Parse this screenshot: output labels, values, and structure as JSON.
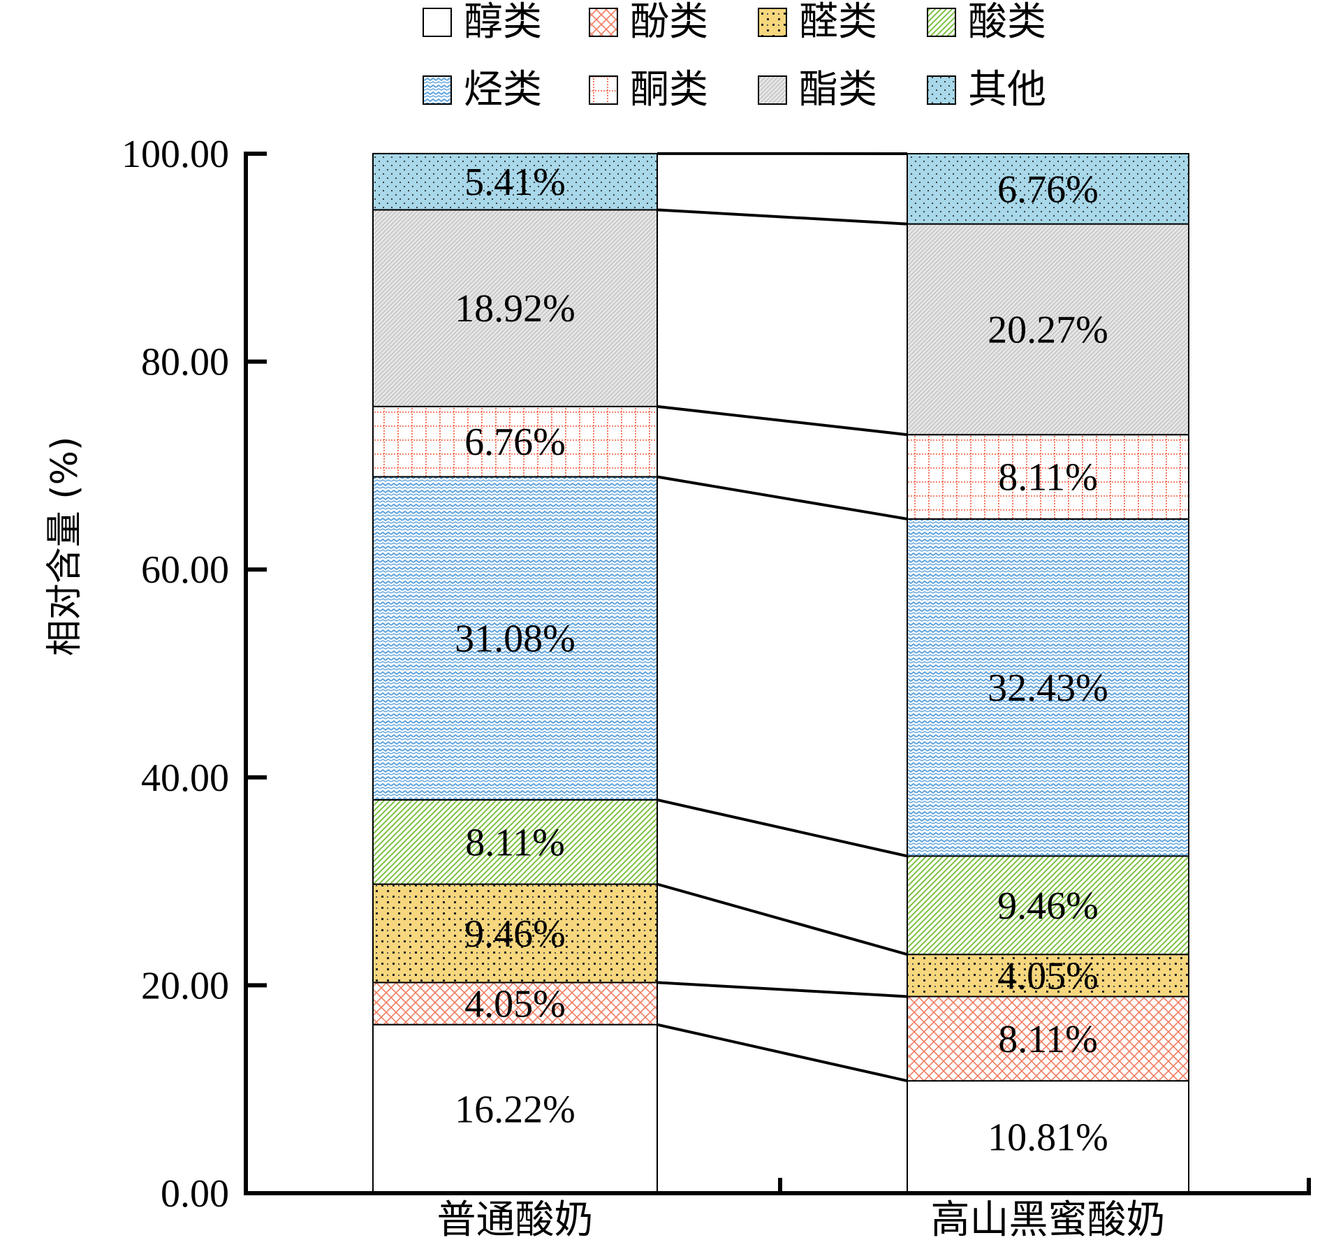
{
  "chart_data": {
    "type": "bar",
    "stacked": true,
    "title": "",
    "xlabel": "",
    "ylabel": "相对含量 (%)",
    "ylim": [
      0,
      100
    ],
    "yticks": [
      "0.00",
      "20.00",
      "40.00",
      "60.00",
      "80.00",
      "100.00"
    ],
    "categories": [
      "普通酸奶",
      "高山黑蜜酸奶"
    ],
    "legend_position": "top",
    "series": [
      {
        "name": "醇类",
        "values": [
          16.22,
          10.81
        ],
        "labels": [
          "16.22%",
          "10.81%"
        ],
        "color": "#ffffff",
        "pattern": "none"
      },
      {
        "name": "酚类",
        "values": [
          4.05,
          8.11
        ],
        "labels": [
          "4.05%",
          "8.11%"
        ],
        "color": "#f07c60",
        "pattern": "crosshatch"
      },
      {
        "name": "醛类",
        "values": [
          9.46,
          4.05
        ],
        "labels": [
          "9.46%",
          "4.05%"
        ],
        "color": "#f7d77e",
        "pattern": "dots"
      },
      {
        "name": "酸类",
        "values": [
          8.11,
          9.46
        ],
        "labels": [
          "8.11%",
          "9.46%"
        ],
        "color": "#7dc142",
        "pattern": "diagonal"
      },
      {
        "name": "烃类",
        "values": [
          31.08,
          32.43
        ],
        "labels": [
          "31.08%",
          "32.43%"
        ],
        "color": "#5fa3dc",
        "pattern": "wave"
      },
      {
        "name": "酮类",
        "values": [
          6.76,
          8.11
        ],
        "labels": [
          "6.76%",
          "8.11%"
        ],
        "color": "#f05a3c",
        "pattern": "grid"
      },
      {
        "name": "酯类",
        "values": [
          18.92,
          20.27
        ],
        "labels": [
          "18.92%",
          "20.27%"
        ],
        "color": "#d0d0d0",
        "pattern": "diagonal-gray"
      },
      {
        "name": "其他",
        "values": [
          5.41,
          6.76
        ],
        "labels": [
          "5.41%",
          "6.76%"
        ],
        "color": "#a8d8ea",
        "pattern": "fine-dots"
      }
    ]
  }
}
